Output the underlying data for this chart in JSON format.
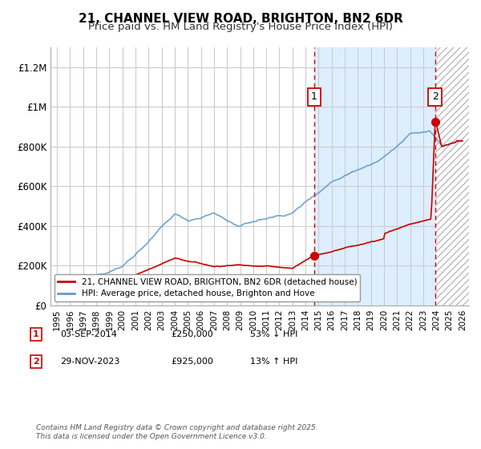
{
  "title": "21, CHANNEL VIEW ROAD, BRIGHTON, BN2 6DR",
  "subtitle": "Price paid vs. HM Land Registry's House Price Index (HPI)",
  "ylim": [
    0,
    1300000
  ],
  "yticks": [
    0,
    200000,
    400000,
    600000,
    800000,
    1000000,
    1200000
  ],
  "ytick_labels": [
    "£0",
    "£200K",
    "£400K",
    "£600K",
    "£800K",
    "£1M",
    "£1.2M"
  ],
  "xlim_start": 1994.5,
  "xlim_end": 2026.5,
  "transaction1_date": 2014.67,
  "transaction1_price": 250000,
  "transaction1_label": "1",
  "transaction2_date": 2023.91,
  "transaction2_price": 925000,
  "transaction2_label": "2",
  "red_line_color": "#cc0000",
  "blue_line_color": "#6699cc",
  "shade_color": "#ddeeff",
  "grid_color": "#cccccc",
  "background_color": "#ffffff",
  "legend1_text": "21, CHANNEL VIEW ROAD, BRIGHTON, BN2 6DR (detached house)",
  "legend2_text": "HPI: Average price, detached house, Brighton and Hove",
  "footer": "Contains HM Land Registry data © Crown copyright and database right 2025.\nThis data is licensed under the Open Government Licence v3.0.",
  "title_fontsize": 11,
  "subtitle_fontsize": 9.5
}
